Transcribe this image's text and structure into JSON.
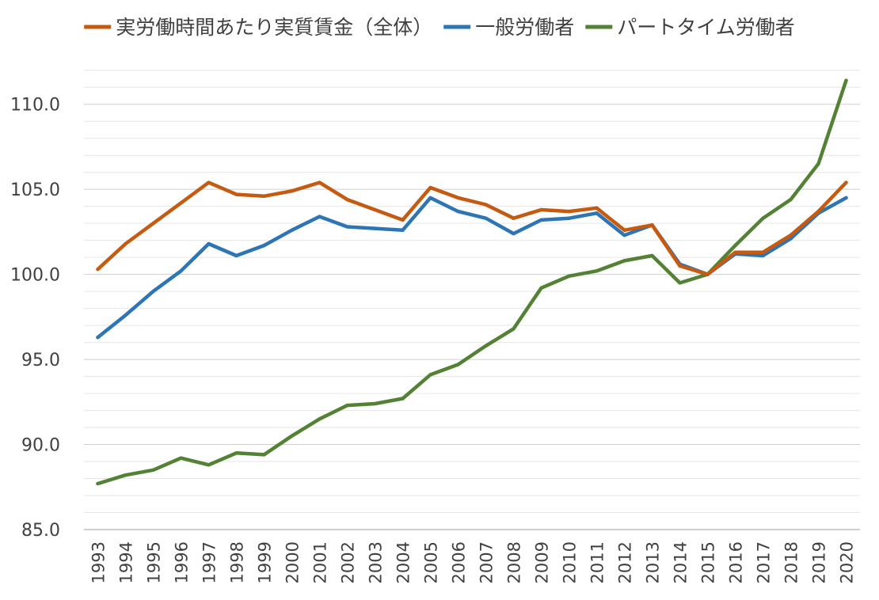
{
  "chart_data": {
    "type": "line",
    "title": "",
    "xlabel": "",
    "ylabel": "",
    "ylim": [
      85,
      112.5
    ],
    "y_ticks": [
      85.0,
      90.0,
      95.0,
      100.0,
      105.0,
      110.0
    ],
    "grid": "horizontal",
    "legend": "top",
    "x": [
      "1993",
      "1994",
      "1995",
      "1996",
      "1997",
      "1998",
      "1999",
      "2000",
      "2001",
      "2002",
      "2003",
      "2004",
      "2005",
      "2006",
      "2007",
      "2008",
      "2009",
      "2010",
      "2011",
      "2012",
      "2013",
      "2014",
      "2015",
      "2016",
      "2017",
      "2018",
      "2019",
      "2020"
    ],
    "series": [
      {
        "name": "実労働時間あたり実質賃金（全体）",
        "color": "#C55A11",
        "values": [
          100.3,
          101.8,
          103.0,
          104.2,
          105.4,
          104.7,
          104.6,
          104.9,
          105.4,
          104.4,
          103.8,
          103.2,
          105.1,
          104.5,
          104.1,
          103.3,
          103.8,
          103.7,
          103.9,
          102.6,
          102.9,
          100.5,
          100.0,
          101.3,
          101.3,
          102.3,
          103.7,
          105.4
        ]
      },
      {
        "name": "一般労働者",
        "color": "#2E75B6",
        "values": [
          96.3,
          97.6,
          99.0,
          100.2,
          101.8,
          101.1,
          101.7,
          102.6,
          103.4,
          102.8,
          102.7,
          102.6,
          104.5,
          103.7,
          103.3,
          102.4,
          103.2,
          103.3,
          103.6,
          102.3,
          102.9,
          100.6,
          100.0,
          101.2,
          101.1,
          102.1,
          103.6,
          104.5
        ]
      },
      {
        "name": "パートタイム労働者",
        "color": "#548235",
        "values": [
          87.7,
          88.2,
          88.5,
          89.2,
          88.8,
          89.5,
          89.4,
          90.5,
          91.5,
          92.3,
          92.4,
          92.7,
          94.1,
          94.7,
          95.8,
          96.8,
          99.2,
          99.9,
          100.2,
          100.8,
          101.1,
          99.5,
          100.0,
          101.7,
          103.3,
          104.4,
          106.5,
          111.4
        ]
      }
    ]
  }
}
